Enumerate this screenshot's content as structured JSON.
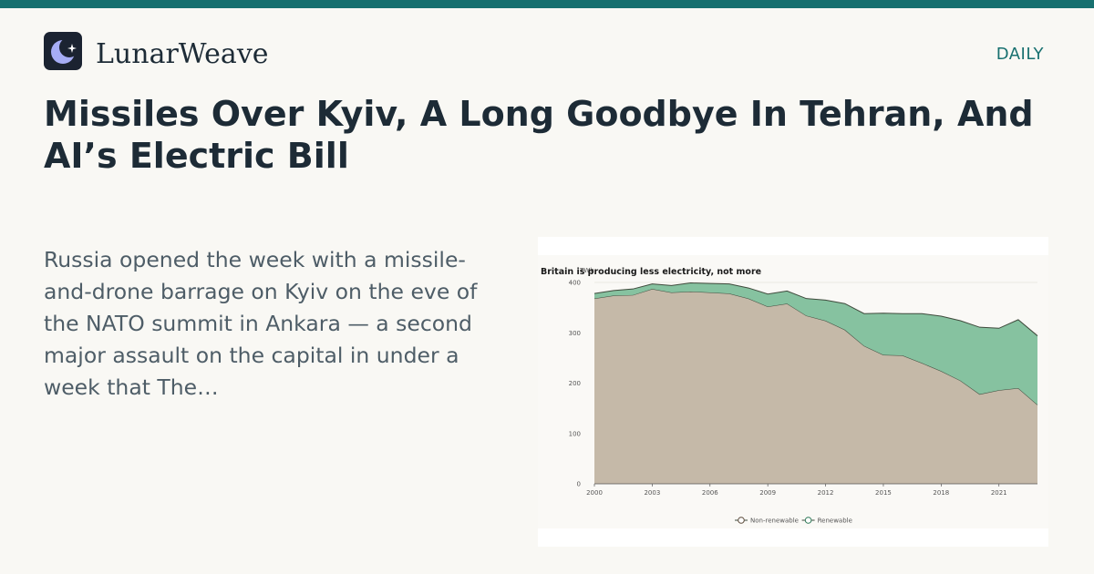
{
  "brand": {
    "name": "LunarWeave",
    "section": "DAILY",
    "accent": "#17706f"
  },
  "article": {
    "headline": "Missiles Over Kyiv, A Long Goodbye In Tehran, And AI’s Electric Bill",
    "summary": "Russia opened the week with a missile-and-drone barrage on Kyiv on the eve of the NATO summit in Ankara — a second major assault on the capital in under a week that The…"
  },
  "chart_data": {
    "type": "area",
    "stacked": true,
    "title": "Britain is producing less electricity, not more",
    "ylabel": "TWh",
    "ylim": [
      0,
      400
    ],
    "yticks": [
      0,
      100,
      200,
      300,
      400
    ],
    "xlim": [
      2000,
      2023
    ],
    "xticks": [
      2000,
      2003,
      2006,
      2009,
      2012,
      2015,
      2018,
      2021
    ],
    "x": [
      2000,
      2001,
      2002,
      2003,
      2004,
      2005,
      2006,
      2007,
      2008,
      2009,
      2010,
      2011,
      2012,
      2013,
      2014,
      2015,
      2016,
      2017,
      2018,
      2019,
      2020,
      2021,
      2022,
      2023
    ],
    "series": [
      {
        "name": "Non-renewable",
        "color": "#c5b9a8",
        "line_color": "#3f4a3c",
        "values": [
          368,
          374,
          375,
          387,
          380,
          382,
          380,
          378,
          368,
          352,
          358,
          334,
          324,
          306,
          274,
          256,
          255,
          240,
          224,
          205,
          178,
          186,
          190,
          157
        ]
      },
      {
        "name": "Renewable",
        "color": "#86c2a0",
        "line_color": "#3f4a3c",
        "values": [
          10,
          10,
          12,
          10,
          14,
          17,
          18,
          19,
          21,
          25,
          25,
          34,
          41,
          52,
          64,
          83,
          83,
          98,
          109,
          119,
          133,
          123,
          136,
          137
        ]
      }
    ],
    "grid": true,
    "legend": "bottom-center"
  }
}
